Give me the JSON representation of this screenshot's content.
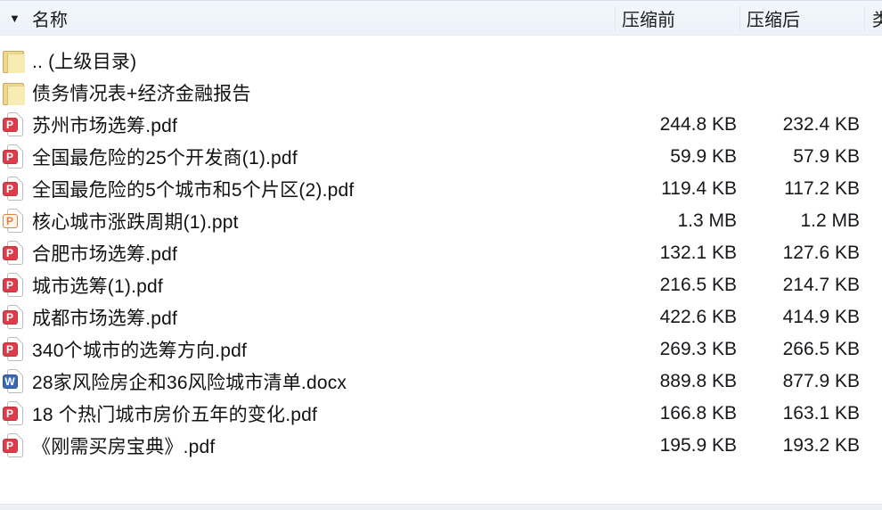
{
  "header": {
    "sort_indicator": "▼",
    "columns": {
      "name": "名称",
      "before": "压缩前",
      "after": "压缩后",
      "type": "类"
    }
  },
  "icon_badges": {
    "pdf": "P",
    "ppt": "P",
    "docx": "W"
  },
  "colors": {
    "pdf_badge": "#dc3d49",
    "ppt_badge": "#df8140",
    "docx_badge": "#3a69b2",
    "folder": "#eed98b",
    "header_bg": "#eff4fa"
  },
  "files": [
    {
      "icon": "folder",
      "name": ".. (上级目录)",
      "before": "",
      "after": ""
    },
    {
      "icon": "folder",
      "name": "债务情况表+经济金融报告",
      "before": "",
      "after": ""
    },
    {
      "icon": "pdf",
      "name": "苏州市场选筹.pdf",
      "before": "244.8 KB",
      "after": "232.4 KB"
    },
    {
      "icon": "pdf",
      "name": "全国最危险的25个开发商(1).pdf",
      "before": "59.9 KB",
      "after": "57.9 KB"
    },
    {
      "icon": "pdf",
      "name": "全国最危险的5个城市和5个片区(2).pdf",
      "before": "119.4 KB",
      "after": "117.2 KB"
    },
    {
      "icon": "ppt",
      "name": "核心城市涨跌周期(1).ppt",
      "before": "1.3 MB",
      "after": "1.2 MB"
    },
    {
      "icon": "pdf",
      "name": "合肥市场选筹.pdf",
      "before": "132.1 KB",
      "after": "127.6 KB"
    },
    {
      "icon": "pdf",
      "name": "城市选筹(1).pdf",
      "before": "216.5 KB",
      "after": "214.7 KB"
    },
    {
      "icon": "pdf",
      "name": "成都市场选筹.pdf",
      "before": "422.6 KB",
      "after": "414.9 KB"
    },
    {
      "icon": "pdf",
      "name": "340个城市的选筹方向.pdf",
      "before": "269.3 KB",
      "after": "266.5 KB"
    },
    {
      "icon": "docx",
      "name": "28家风险房企和36风险城市清单.docx",
      "before": "889.8 KB",
      "after": "877.9 KB"
    },
    {
      "icon": "pdf",
      "name": "18 个热门城市房价五年的变化.pdf",
      "before": "166.8 KB",
      "after": "163.1 KB"
    },
    {
      "icon": "pdf",
      "name": "《刚需买房宝典》.pdf",
      "before": "195.9 KB",
      "after": "193.2 KB"
    }
  ]
}
